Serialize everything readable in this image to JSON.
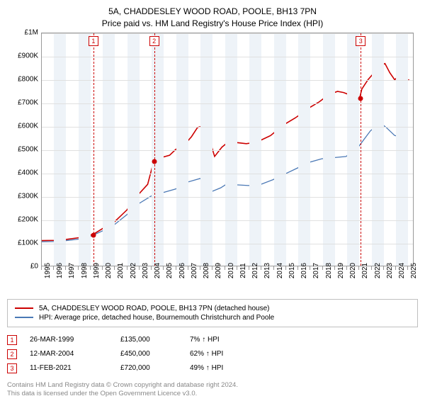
{
  "title": {
    "line1": "5A, CHADDESLEY WOOD ROAD, POOLE, BH13 7PN",
    "line2": "Price paid vs. HM Land Registry's House Price Index (HPI)",
    "fontsize": 12
  },
  "chart": {
    "type": "line",
    "background_color": "#ffffff",
    "grid_color": "#e0e0e0",
    "axis_color": "#999999",
    "x": {
      "min": 1995,
      "max": 2025.5,
      "ticks": [
        1995,
        1996,
        1997,
        1998,
        1999,
        2000,
        2001,
        2002,
        2003,
        2004,
        2005,
        2006,
        2007,
        2008,
        2009,
        2010,
        2011,
        2012,
        2013,
        2014,
        2015,
        2016,
        2017,
        2018,
        2019,
        2020,
        2021,
        2022,
        2023,
        2024,
        2025
      ],
      "label_fontsize": 10,
      "alt_band_color": "#eef3f8"
    },
    "y": {
      "min": 0,
      "max": 1000000,
      "ticks": [
        {
          "v": 0,
          "label": "£0"
        },
        {
          "v": 100000,
          "label": "£100K"
        },
        {
          "v": 200000,
          "label": "£200K"
        },
        {
          "v": 300000,
          "label": "£300K"
        },
        {
          "v": 400000,
          "label": "£400K"
        },
        {
          "v": 500000,
          "label": "£500K"
        },
        {
          "v": 600000,
          "label": "£600K"
        },
        {
          "v": 700000,
          "label": "£700K"
        },
        {
          "v": 800000,
          "label": "£800K"
        },
        {
          "v": 900000,
          "label": "£900K"
        },
        {
          "v": 1000000,
          "label": "£1M"
        }
      ],
      "label_fontsize": 10
    },
    "sale_markers": {
      "dash_color": "#cc0000",
      "box_border": "#cc0000",
      "box_text": "#cc0000",
      "dot_color": "#cc0000",
      "items": [
        {
          "n": "1",
          "year": 1999.23,
          "price": 135000
        },
        {
          "n": "2",
          "year": 2004.2,
          "price": 450000
        },
        {
          "n": "3",
          "year": 2021.11,
          "price": 720000
        }
      ]
    },
    "series": [
      {
        "name": "property",
        "color": "#cc0000",
        "width": 1.6,
        "points": [
          [
            1995.0,
            108000
          ],
          [
            1996.0,
            109000
          ],
          [
            1997.0,
            113000
          ],
          [
            1998.0,
            120000
          ],
          [
            1999.0,
            132000
          ],
          [
            1999.23,
            135000
          ],
          [
            2000.0,
            160000
          ],
          [
            2001.0,
            190000
          ],
          [
            2002.0,
            240000
          ],
          [
            2003.0,
            310000
          ],
          [
            2003.7,
            350000
          ],
          [
            2004.0,
            410000
          ],
          [
            2004.2,
            450000
          ],
          [
            2004.8,
            465000
          ],
          [
            2005.5,
            475000
          ],
          [
            2006.0,
            500000
          ],
          [
            2006.8,
            525000
          ],
          [
            2007.3,
            555000
          ],
          [
            2007.8,
            595000
          ],
          [
            2008.2,
            600000
          ],
          [
            2008.8,
            540000
          ],
          [
            2009.2,
            470000
          ],
          [
            2009.8,
            510000
          ],
          [
            2010.5,
            540000
          ],
          [
            2011.0,
            530000
          ],
          [
            2011.8,
            525000
          ],
          [
            2012.5,
            530000
          ],
          [
            2013.0,
            540000
          ],
          [
            2013.8,
            560000
          ],
          [
            2014.5,
            590000
          ],
          [
            2015.0,
            610000
          ],
          [
            2015.8,
            635000
          ],
          [
            2016.5,
            660000
          ],
          [
            2017.0,
            680000
          ],
          [
            2017.8,
            705000
          ],
          [
            2018.3,
            725000
          ],
          [
            2018.8,
            740000
          ],
          [
            2019.3,
            750000
          ],
          [
            2019.8,
            745000
          ],
          [
            2020.3,
            735000
          ],
          [
            2020.8,
            755000
          ],
          [
            2021.11,
            720000
          ],
          [
            2021.3,
            760000
          ],
          [
            2021.8,
            800000
          ],
          [
            2022.3,
            830000
          ],
          [
            2022.8,
            860000
          ],
          [
            2023.2,
            870000
          ],
          [
            2023.6,
            830000
          ],
          [
            2024.0,
            800000
          ],
          [
            2024.4,
            820000
          ],
          [
            2024.8,
            795000
          ],
          [
            2025.2,
            800000
          ]
        ]
      },
      {
        "name": "hpi",
        "color": "#4a78b5",
        "width": 1.3,
        "points": [
          [
            1995.0,
            103000
          ],
          [
            1996.0,
            104000
          ],
          [
            1997.0,
            108000
          ],
          [
            1998.0,
            114000
          ],
          [
            1999.0,
            126000
          ],
          [
            2000.0,
            150000
          ],
          [
            2001.0,
            178000
          ],
          [
            2002.0,
            220000
          ],
          [
            2003.0,
            268000
          ],
          [
            2004.0,
            300000
          ],
          [
            2005.0,
            315000
          ],
          [
            2006.0,
            330000
          ],
          [
            2007.0,
            360000
          ],
          [
            2008.0,
            375000
          ],
          [
            2008.6,
            355000
          ],
          [
            2009.0,
            320000
          ],
          [
            2009.7,
            335000
          ],
          [
            2010.3,
            355000
          ],
          [
            2011.0,
            348000
          ],
          [
            2012.0,
            345000
          ],
          [
            2013.0,
            350000
          ],
          [
            2014.0,
            370000
          ],
          [
            2015.0,
            395000
          ],
          [
            2016.0,
            420000
          ],
          [
            2017.0,
            445000
          ],
          [
            2018.0,
            460000
          ],
          [
            2019.0,
            465000
          ],
          [
            2020.0,
            470000
          ],
          [
            2021.0,
            510000
          ],
          [
            2022.0,
            580000
          ],
          [
            2022.8,
            615000
          ],
          [
            2023.3,
            595000
          ],
          [
            2024.0,
            560000
          ],
          [
            2024.5,
            555000
          ],
          [
            2025.0,
            545000
          ]
        ]
      }
    ]
  },
  "legend": {
    "items": [
      {
        "color": "#cc0000",
        "label": "5A, CHADDESLEY WOOD ROAD, POOLE, BH13 7PN (detached house)"
      },
      {
        "color": "#4a78b5",
        "label": "HPI: Average price, detached house, Bournemouth Christchurch and Poole"
      }
    ]
  },
  "sales_table": {
    "arrow": "↑",
    "hpi_suffix": "HPI",
    "rows": [
      {
        "n": "1",
        "date": "26-MAR-1999",
        "price": "£135,000",
        "pct": "7%"
      },
      {
        "n": "2",
        "date": "12-MAR-2004",
        "price": "£450,000",
        "pct": "62%"
      },
      {
        "n": "3",
        "date": "11-FEB-2021",
        "price": "£720,000",
        "pct": "49%"
      }
    ]
  },
  "footer": {
    "line1": "Contains HM Land Registry data © Crown copyright and database right 2024.",
    "line2": "This data is licensed under the Open Government Licence v3.0."
  }
}
